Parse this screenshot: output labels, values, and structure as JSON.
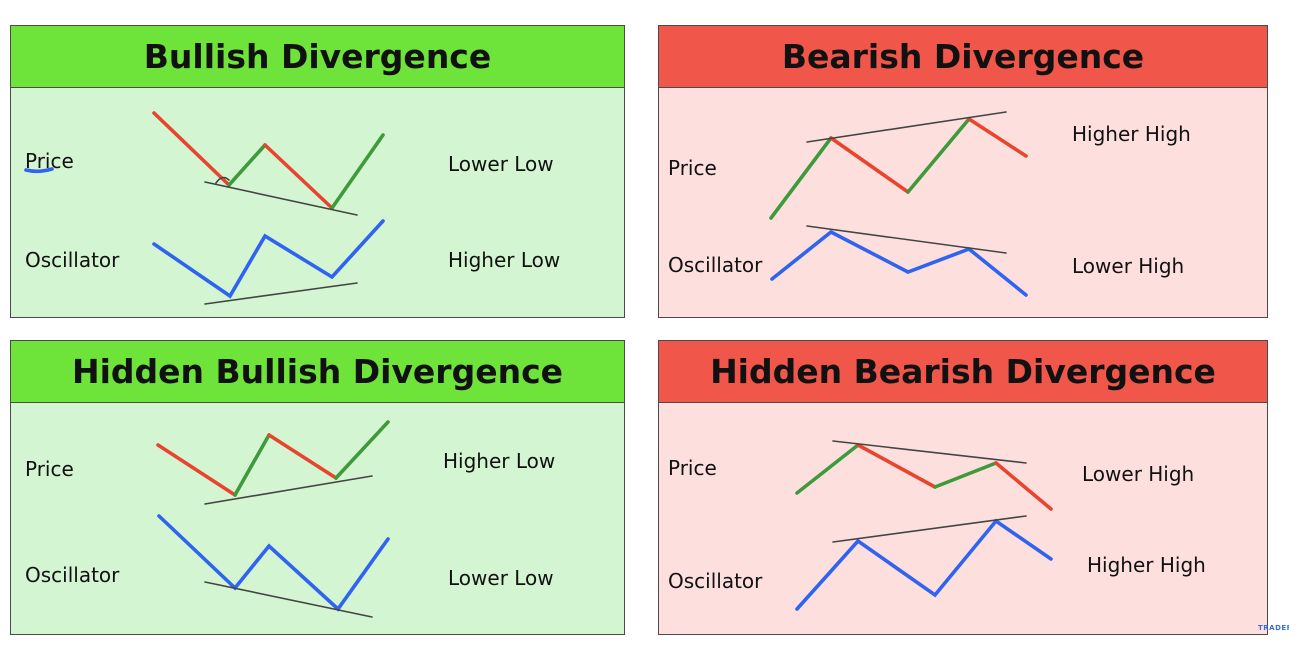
{
  "colors": {
    "bull_title": "#6ee33a",
    "bull_body": "#d4f5d2",
    "bear_title": "#f0564a",
    "bear_body": "#fde0de",
    "up": "#3e9a3a",
    "down": "#e8442e",
    "osc": "#2f63f0",
    "trend": "#444444"
  },
  "panels": [
    {
      "id": "bullish",
      "title": "Bullish Divergence",
      "price_label": "Price",
      "osc_label": "Oscillator",
      "price_note": "Lower Low",
      "osc_note": "Higher Low"
    },
    {
      "id": "bearish",
      "title": "Bearish Divergence",
      "price_label": "Price",
      "osc_label": "Oscillator",
      "price_note": "Higher High",
      "osc_note": "Lower High"
    },
    {
      "id": "hidden-bullish",
      "title": "Hidden Bullish Divergence",
      "price_label": "Price",
      "osc_label": "Oscillator",
      "price_note": "Higher Low",
      "osc_note": "Lower Low"
    },
    {
      "id": "hidden-bearish",
      "title": "Hidden Bearish Divergence",
      "price_label": "Price",
      "osc_label": "Oscillator",
      "price_note": "Lower High",
      "osc_note": "Higher High"
    }
  ],
  "watermark": "TRADER"
}
